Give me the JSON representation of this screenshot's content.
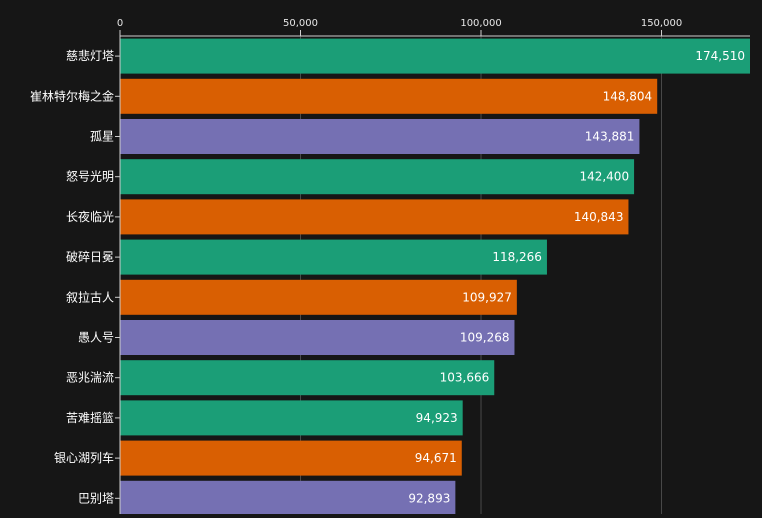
{
  "colors": {
    "background": "#161616",
    "green": "#1b9e77",
    "orange": "#d95f02",
    "purple": "#7570b3",
    "gridline": "#4a4a4a",
    "axis": "#cfcfcf",
    "text": "#ffffff"
  },
  "chart_data": {
    "type": "bar",
    "orientation": "horizontal",
    "title": "",
    "xlabel": "",
    "ylabel": "",
    "xlim": [
      0,
      174510
    ],
    "x_ticks": [
      0,
      50000,
      100000,
      150000
    ],
    "x_tick_labels": [
      "0",
      "50,000",
      "100,000",
      "150,000"
    ],
    "x_axis_position": "top",
    "grid": true,
    "legend": "none",
    "categories": [
      "慈悲灯塔",
      "崔林特尔梅之金",
      "孤星",
      "怒号光明",
      "长夜临光",
      "破碎日冕",
      "叙拉古人",
      "愚人号",
      "恶兆湍流",
      "苦难摇篮",
      "银心湖列车",
      "巴别塔"
    ],
    "values": [
      174510,
      148804,
      143881,
      142400,
      140843,
      118266,
      109927,
      109268,
      103666,
      94923,
      94671,
      92893
    ],
    "value_labels": [
      "174,510",
      "148,804",
      "143,881",
      "142,400",
      "140,843",
      "118,266",
      "109,927",
      "109,268",
      "103,666",
      "94,923",
      "94,671",
      "92,893"
    ],
    "bar_colors": [
      "#1b9e77",
      "#d95f02",
      "#7570b3",
      "#1b9e77",
      "#d95f02",
      "#1b9e77",
      "#d95f02",
      "#7570b3",
      "#1b9e77",
      "#1b9e77",
      "#d95f02",
      "#7570b3"
    ]
  }
}
